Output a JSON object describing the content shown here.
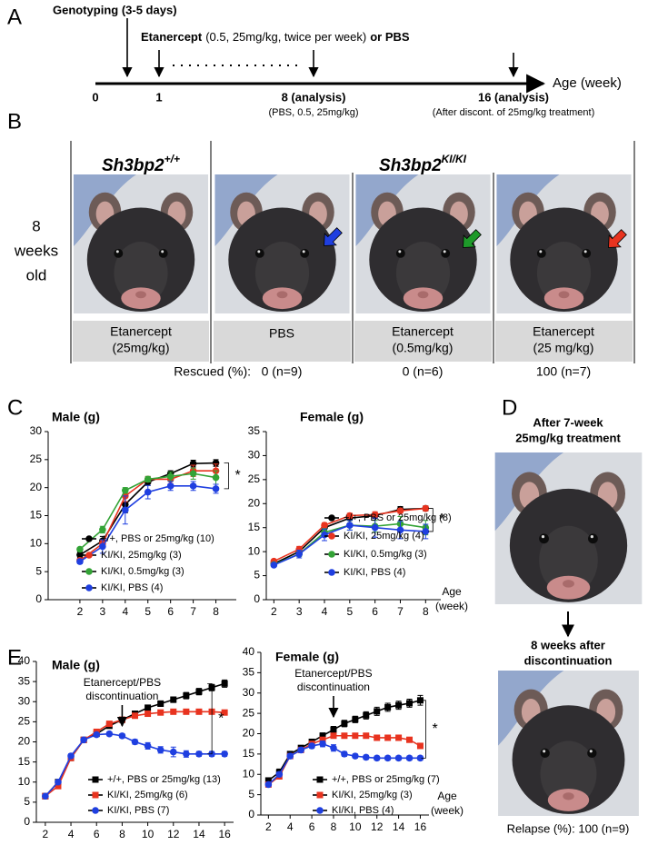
{
  "panel_labels": [
    "A",
    "B",
    "C",
    "D",
    "E"
  ],
  "panel_a": {
    "genotyping": "Genotyping (3-5 days)",
    "treatment": [
      "Etanercept",
      "(0.5, 25mg/kg, twice per week)",
      "or PBS"
    ],
    "timeline": [
      {
        "label": "0"
      },
      {
        "label": "1"
      },
      {
        "label": "8 (analysis)",
        "sub": "(PBS, 0.5, 25mg/kg)"
      },
      {
        "label": "16 (analysis)",
        "sub": "(After discont. of 25mg/kg treatment)"
      }
    ],
    "axis_label": "Age (week)"
  },
  "panel_b": {
    "row_label": [
      "8",
      "weeks",
      "old"
    ],
    "genotype_wt": {
      "base": "Sh3bp2",
      "sup": "+/+"
    },
    "genotype_ki": {
      "base": "Sh3bp2",
      "sup": "KI/KI"
    },
    "groups": [
      [
        "Etanercept",
        "(25mg/kg)"
      ],
      [
        "PBS"
      ],
      [
        "Etanercept",
        "(0.5mg/kg)"
      ],
      [
        "Etanercept",
        "(25 mg/kg)"
      ]
    ],
    "rescued_label": "Rescued (%):",
    "rescued": [
      "0 (n=9)",
      "0 (n=6)",
      "100 (n=7)"
    ]
  },
  "panel_d": {
    "before": [
      "After 7-week",
      "25mg/kg treatment"
    ],
    "after": [
      "8 weeks after",
      "discontinuation"
    ],
    "relapse": "Relapse (%): 100 (n=9)"
  },
  "chart_data": [
    {
      "type": "line",
      "title": "Male (g)",
      "x": [
        2,
        3,
        4,
        5,
        6,
        7,
        8
      ],
      "xlim": [
        0.6,
        8.9
      ],
      "xticks": [
        2,
        3,
        4,
        5,
        6,
        7,
        8
      ],
      "ylim": [
        0,
        30
      ],
      "yticks": [
        0,
        5,
        10,
        15,
        20,
        25,
        30
      ],
      "legend": "lower right",
      "significance": "*",
      "series": [
        {
          "name": "+/+, PBS or 25mg/kg (10)",
          "color": "#000000",
          "marker": "circle",
          "values": [
            8,
            10.5,
            17,
            21,
            22.5,
            24.3,
            24.4
          ],
          "errors": [
            0.5,
            0.8,
            1.5,
            0.6,
            0.5,
            0.6,
            0.6
          ]
        },
        {
          "name": "KI/KI, 25mg/kg (3)",
          "color": "#e8331f",
          "marker": "circle",
          "values": [
            7,
            10,
            18.5,
            21.5,
            21.5,
            23,
            23
          ],
          "errors": [
            0.4,
            0.6,
            1,
            0.5,
            0.8,
            1,
            1.2
          ]
        },
        {
          "name": "KI/KI, 0.5mg/kg (3)",
          "color": "#33a336",
          "marker": "circle",
          "values": [
            9,
            12.5,
            19.5,
            21.5,
            22,
            22.5,
            21.8
          ],
          "errors": [
            0.3,
            0.6,
            0.5,
            0.5,
            0.8,
            1,
            1.2
          ]
        },
        {
          "name": "KI/KI, PBS (4)",
          "color": "#1f3fe0",
          "marker": "circle",
          "values": [
            6.8,
            9.5,
            16,
            19.2,
            20.3,
            20.3,
            19.8
          ],
          "errors": [
            0.4,
            1.2,
            2.5,
            1.2,
            0.8,
            0.8,
            0.8
          ]
        }
      ]
    },
    {
      "type": "line",
      "title": "Female (g)",
      "x": [
        2,
        3,
        4,
        5,
        6,
        7,
        8
      ],
      "xlim": [
        1.7,
        8.6
      ],
      "xticks": [
        2,
        3,
        4,
        5,
        6,
        7,
        8
      ],
      "ylim": [
        0,
        35
      ],
      "yticks": [
        0,
        5,
        10,
        15,
        20,
        25,
        30,
        35
      ],
      "legend": "lower right",
      "significance": "*",
      "x_label": [
        "Age",
        "(week)"
      ],
      "series": [
        {
          "name": "+/+, PBS or 25mg/kg (8)",
          "color": "#000000",
          "marker": "circle",
          "values": [
            7.5,
            10,
            15,
            17,
            17.5,
            18.8,
            19
          ],
          "errors": [
            0.3,
            0.5,
            0.6,
            0.5,
            0.6,
            0.6,
            0.5
          ]
        },
        {
          "name": "KI/KI, 25mg/kg (4)",
          "color": "#e8331f",
          "marker": "circle",
          "values": [
            8,
            10.5,
            15.5,
            17.5,
            17.7,
            18.5,
            19
          ],
          "errors": [
            0.3,
            0.6,
            0.5,
            0.5,
            0.6,
            0.5,
            0.5
          ]
        },
        {
          "name": "KI/KI, 0.5mg/kg (3)",
          "color": "#33a336",
          "marker": "circle",
          "values": [
            7.3,
            9.5,
            14,
            15.5,
            15.3,
            15.8,
            15
          ],
          "errors": [
            0.3,
            0.5,
            0.8,
            1,
            1.2,
            1.5,
            1.5
          ]
        },
        {
          "name": "KI/KI, PBS (4)",
          "color": "#1f3fe0",
          "marker": "circle",
          "values": [
            7.2,
            9.5,
            13.5,
            15.5,
            15,
            14.5,
            14.2
          ],
          "errors": [
            0.3,
            0.8,
            1.2,
            1,
            2,
            1.8,
            1.5
          ]
        }
      ]
    },
    {
      "type": "line",
      "title": "Male (g)",
      "x": [
        2,
        3,
        4,
        5,
        6,
        7,
        8,
        9,
        10,
        11,
        12,
        13,
        14,
        15,
        16
      ],
      "xlim": [
        1.3,
        16.7
      ],
      "xticks": [
        2,
        4,
        6,
        8,
        10,
        12,
        14,
        16
      ],
      "ylim": [
        0,
        40
      ],
      "yticks": [
        0,
        5,
        10,
        15,
        20,
        25,
        30,
        35,
        40
      ],
      "legend": "lower right",
      "significance": "*",
      "annotation": [
        "Etanercept/PBS",
        "discontinuation"
      ],
      "annotation_x": 8,
      "series": [
        {
          "name": "+/+, PBS or 25mg/kg (13)",
          "color": "#000000",
          "marker": "square",
          "values": [
            6.5,
            10,
            16,
            20.5,
            22,
            24,
            25.5,
            27,
            28.5,
            29.5,
            30.5,
            31.5,
            32.5,
            33.5,
            34.5
          ],
          "errors": [
            0.4,
            0.6,
            0.6,
            0.5,
            0.5,
            0.5,
            0.6,
            0.6,
            0.6,
            0.7,
            0.7,
            0.8,
            0.8,
            0.8,
            0.9
          ]
        },
        {
          "name": "KI/KI, 25mg/kg (6)",
          "color": "#e8331f",
          "marker": "square",
          "values": [
            6.5,
            9,
            16,
            20.5,
            22.5,
            24.5,
            25.5,
            26.5,
            27,
            27.3,
            27.5,
            27.5,
            27.5,
            27.5,
            27.3
          ],
          "errors": [
            0.3,
            0.4,
            0.5,
            0.4,
            0.4,
            0.4,
            0.4,
            0.4,
            0.4,
            0.4,
            0.4,
            0.4,
            0.4,
            0.4,
            0.4
          ]
        },
        {
          "name": "KI/KI, PBS (7)",
          "color": "#1f3fe0",
          "marker": "circle",
          "values": [
            6.5,
            10,
            16.5,
            20.5,
            21.8,
            22,
            21.5,
            20,
            19,
            18,
            17.5,
            17,
            17,
            17,
            17
          ],
          "errors": [
            0.3,
            0.4,
            0.5,
            0.4,
            0.4,
            0.5,
            0.5,
            0.6,
            0.8,
            0.8,
            1.2,
            0.8,
            0.6,
            0.6,
            0.6
          ]
        }
      ]
    },
    {
      "type": "line",
      "title": "Female (g)",
      "x": [
        2,
        3,
        4,
        5,
        6,
        7,
        8,
        9,
        10,
        11,
        12,
        13,
        14,
        15,
        16
      ],
      "xlim": [
        1.3,
        16.8
      ],
      "xticks": [
        2,
        4,
        6,
        8,
        10,
        12,
        14,
        16
      ],
      "ylim": [
        0,
        40
      ],
      "yticks": [
        0,
        5,
        10,
        15,
        20,
        25,
        30,
        35,
        40
      ],
      "legend": "lower right",
      "significance": "*",
      "annotation": [
        "Etanercept/PBS",
        "discontinuation"
      ],
      "annotation_x": 8,
      "x_label": [
        "Age",
        "(week)"
      ],
      "series": [
        {
          "name": "+/+, PBS or 25mg/kg (7)",
          "color": "#000000",
          "marker": "square",
          "values": [
            8.5,
            10.5,
            15,
            16.5,
            18,
            19.5,
            21,
            22.5,
            23.5,
            24.5,
            25.5,
            26.5,
            27,
            27.5,
            28.2
          ],
          "errors": [
            0.5,
            0.8,
            0.6,
            0.6,
            0.6,
            0.7,
            0.8,
            0.8,
            0.8,
            0.9,
            1,
            1,
            1,
            1,
            1.2
          ]
        },
        {
          "name": "KI/KI, 25mg/kg (3)",
          "color": "#e8331f",
          "marker": "square",
          "values": [
            7.5,
            9.5,
            14.5,
            16,
            17.5,
            18.5,
            19.5,
            19.5,
            19.5,
            19.5,
            19,
            19,
            19,
            18.5,
            17
          ],
          "errors": [
            0.4,
            0.6,
            0.6,
            0.6,
            0.6,
            0.6,
            0.6,
            0.6,
            0.6,
            0.6,
            0.6,
            0.6,
            0.6,
            0.6,
            0.6
          ]
        },
        {
          "name": "KI/KI, PBS (4)",
          "color": "#1f3fe0",
          "marker": "circle",
          "values": [
            7.5,
            10,
            14.5,
            16,
            17,
            17.5,
            16.5,
            15,
            14.5,
            14.2,
            14,
            14,
            14,
            14,
            14
          ],
          "errors": [
            0.4,
            0.6,
            0.6,
            0.6,
            0.6,
            0.7,
            0.8,
            0.6,
            0.5,
            0.5,
            0.5,
            0.5,
            0.5,
            0.5,
            0.5
          ]
        }
      ]
    }
  ]
}
